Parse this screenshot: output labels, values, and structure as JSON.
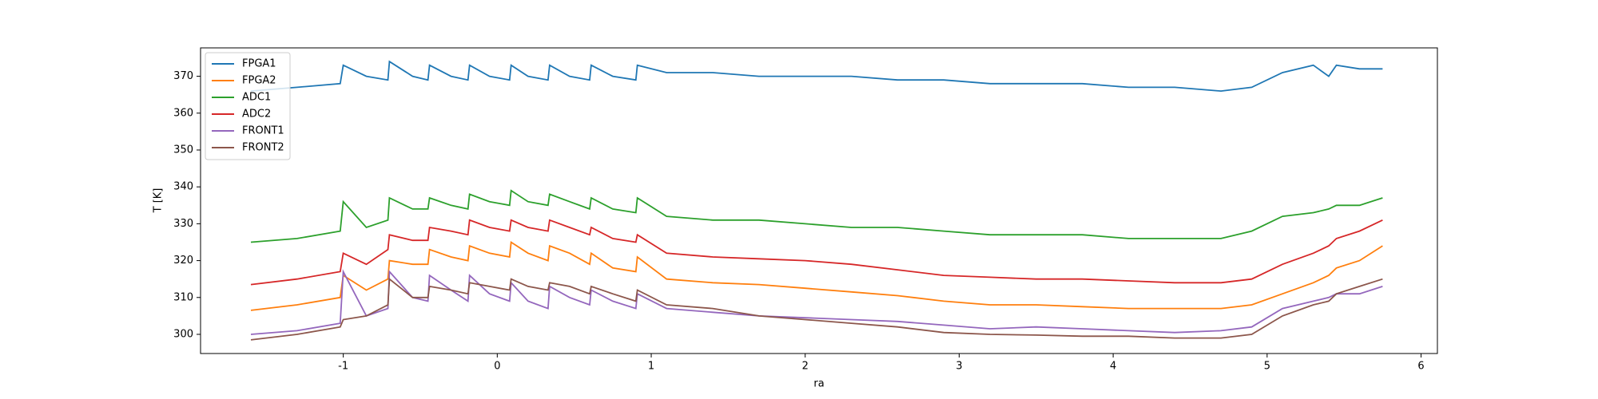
{
  "chart_data": {
    "type": "line",
    "xlabel": "ra",
    "ylabel": "T [K]",
    "x": [
      -1.6,
      -1.3,
      -1.02,
      -1.0,
      -0.85,
      -0.71,
      -0.7,
      -0.55,
      -0.45,
      -0.44,
      -0.3,
      -0.19,
      -0.18,
      -0.05,
      0.08,
      0.09,
      0.2,
      0.33,
      0.34,
      0.47,
      0.6,
      0.61,
      0.75,
      0.9,
      0.91,
      1.1,
      1.4,
      1.7,
      2.0,
      2.3,
      2.6,
      2.9,
      3.2,
      3.5,
      3.8,
      4.1,
      4.4,
      4.7,
      4.9,
      5.1,
      5.3,
      5.4,
      5.45,
      5.6,
      5.75
    ],
    "series": [
      {
        "name": "FPGA1",
        "color": "#1f77b4",
        "values": [
          366,
          367,
          368,
          373,
          370,
          369,
          374,
          370,
          369,
          373,
          370,
          369,
          373,
          370,
          369,
          373,
          370,
          369,
          373,
          370,
          369,
          373,
          370,
          369,
          373,
          371,
          371,
          370,
          370,
          370,
          369,
          369,
          368,
          368,
          368,
          367,
          367,
          366,
          367,
          371,
          373,
          370,
          373,
          372,
          372
        ]
      },
      {
        "name": "FPGA2",
        "color": "#ff7f0e",
        "values": [
          306.5,
          308,
          310,
          316,
          312,
          315,
          320,
          319,
          319,
          323,
          321,
          320,
          324,
          322,
          321,
          325,
          322,
          320,
          324,
          322,
          319,
          322,
          318,
          317,
          321,
          315,
          314,
          313.5,
          312.5,
          311.5,
          310.5,
          309,
          308,
          308,
          307.5,
          307,
          307,
          307,
          308,
          311,
          314,
          316,
          318,
          320,
          324
        ]
      },
      {
        "name": "ADC1",
        "color": "#2ca02c",
        "values": [
          325,
          326,
          328,
          336,
          329,
          331,
          337,
          334,
          334,
          337,
          335,
          334,
          338,
          336,
          335,
          339,
          336,
          335,
          338,
          336,
          334,
          337,
          334,
          333,
          337,
          332,
          331,
          331,
          330,
          329,
          329,
          328,
          327,
          327,
          327,
          326,
          326,
          326,
          328,
          332,
          333,
          334,
          335,
          335,
          337
        ]
      },
      {
        "name": "ADC2",
        "color": "#d62728",
        "values": [
          313.5,
          315,
          317,
          322,
          319,
          323,
          327,
          325.5,
          325.5,
          329,
          328,
          327,
          331,
          329,
          328,
          331,
          329,
          328,
          331,
          329,
          327,
          329,
          326,
          325,
          327,
          322,
          321,
          320.5,
          320,
          319,
          317.5,
          316,
          315.5,
          315,
          315,
          314.5,
          314,
          314,
          315,
          319,
          322,
          324,
          326,
          328,
          331
        ]
      },
      {
        "name": "FRONT1",
        "color": "#9467bd",
        "values": [
          300,
          301,
          303,
          317,
          305,
          307,
          317,
          310,
          309,
          316,
          312,
          309,
          316,
          311,
          309,
          314,
          309,
          307,
          313,
          310,
          308,
          312,
          309,
          307,
          311,
          307,
          306,
          305,
          304.5,
          304,
          303.5,
          302.5,
          301.5,
          302,
          301.5,
          301,
          300.5,
          301,
          302,
          307,
          309,
          310,
          311,
          311,
          313
        ]
      },
      {
        "name": "FRONT2",
        "color": "#8c564b",
        "values": [
          298.5,
          300,
          302,
          304,
          305,
          308,
          315,
          310,
          310,
          313,
          312,
          311,
          314,
          313,
          312,
          315,
          313,
          312,
          314,
          313,
          311,
          313,
          311,
          309,
          312,
          308,
          307,
          305,
          304,
          303,
          302,
          300.5,
          300,
          299.8,
          299.5,
          299.5,
          299,
          299,
          300,
          305,
          308,
          309,
          311,
          313,
          315
        ]
      }
    ],
    "xlim": [
      -1.927,
      6.106
    ],
    "ylim": [
      294.8,
      377.7
    ],
    "xticks": [
      -1,
      0,
      1,
      2,
      3,
      4,
      5,
      6
    ],
    "yticks": [
      300,
      310,
      320,
      330,
      340,
      350,
      360,
      370
    ],
    "legend": "upper left"
  }
}
